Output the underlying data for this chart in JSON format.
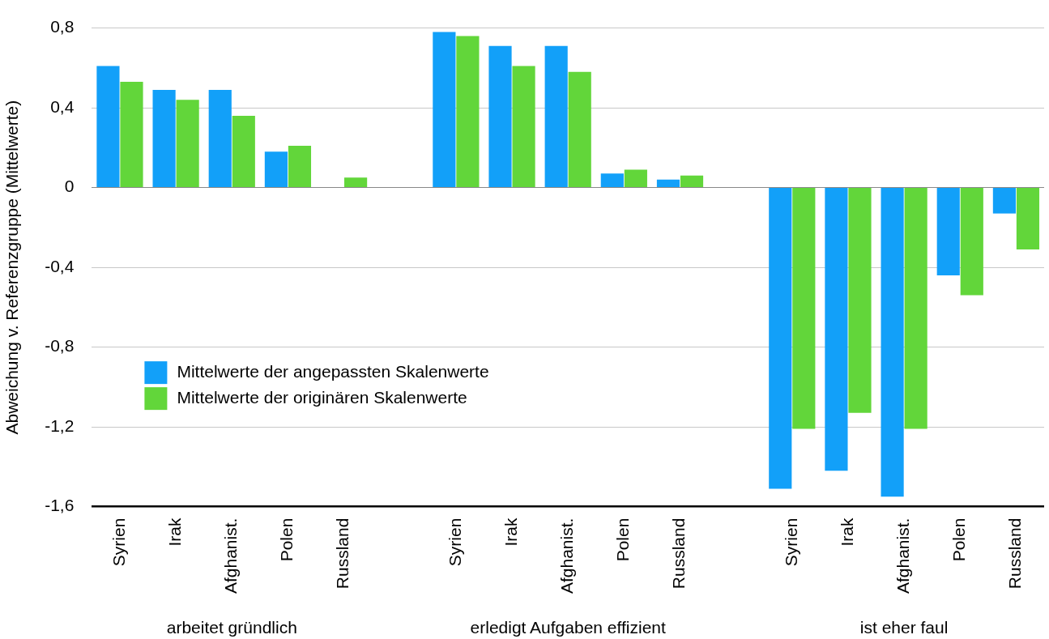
{
  "chart_data": {
    "type": "bar",
    "ylabel": "Abweichung v. Referenzgruppe (Mittelwerte)",
    "categories": [
      "Syrien",
      "Irak",
      "Afghanist.",
      "Polen",
      "Russland",
      null,
      "Syrien",
      "Irak",
      "Afghanist.",
      "Polen",
      "Russland",
      null,
      "Syrien",
      "Irak",
      "Afghanist.",
      "Polen",
      "Russland"
    ],
    "series": [
      {
        "name": "Mittelwerte der angepassten Skalenwerte",
        "color": "#12a0f9",
        "values": [
          0.61,
          0.49,
          0.49,
          0.18,
          null,
          null,
          0.78,
          0.71,
          0.71,
          0.07,
          0.04,
          null,
          -1.51,
          -1.42,
          -1.55,
          -0.44,
          -0.13
        ]
      },
      {
        "name": "Mittelwerte der originären Skalenwerte",
        "color": "#62d63a",
        "values": [
          0.53,
          0.44,
          0.36,
          0.21,
          0.05,
          null,
          0.76,
          0.61,
          0.58,
          0.09,
          0.06,
          null,
          -1.21,
          -1.13,
          -1.21,
          -0.54,
          -0.31
        ]
      }
    ],
    "ylim": [
      -1.6,
      0.8
    ],
    "yticks": [
      {
        "value": 0.8,
        "label": "0,8"
      },
      {
        "value": 0.4,
        "label": "0,4"
      },
      0,
      {
        "value": -0.4,
        "label": "-0,4"
      },
      {
        "value": -0.8,
        "label": "-0,8"
      },
      {
        "value": -1.2,
        "label": "-1,2"
      },
      {
        "value": -1.6,
        "label": "-1,6"
      }
    ],
    "grid": "y",
    "legend": "center left",
    "annotations": [
      "arbeitet gründlich",
      "erledigt Aufgaben effizient",
      "ist eher faul"
    ]
  }
}
